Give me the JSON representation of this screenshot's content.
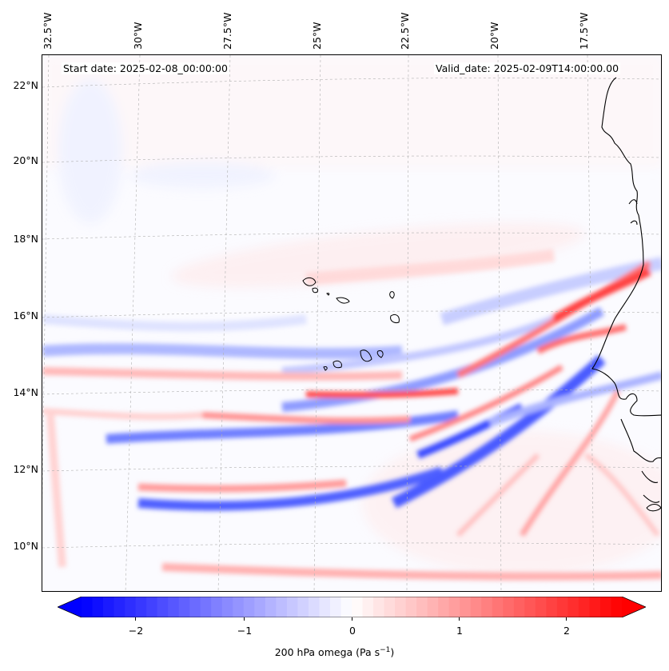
{
  "header": {
    "start_date": "Start date: 2025-02-08_00:00:00",
    "valid_date": "Valid_date: 2025-02-09T14:00:00.00"
  },
  "axes": {
    "longitude_labels": [
      "32.5°W",
      "30°W",
      "27.5°W",
      "25°W",
      "22.5°W",
      "20°W",
      "17.5°W"
    ],
    "latitude_labels": [
      "22°N",
      "20°N",
      "18°N",
      "16°N",
      "14°N",
      "12°N",
      "10°N"
    ]
  },
  "colorbar": {
    "title": "200 hPa omega (Pa s",
    "title_sup": "−1",
    "title_end": ")",
    "tick_labels": [
      "−2",
      "−1",
      "0",
      "1",
      "2"
    ],
    "tick_values": [
      -2,
      -1,
      0,
      1,
      2
    ],
    "range": [
      -2.75,
      2.75
    ],
    "negative_color": "#0000ff",
    "neutral_color": "#ffffff",
    "positive_color": "#ff0000"
  },
  "colors": {
    "coastline": "#000000",
    "gridline": "#b0b0b0",
    "ascent_blue": "#3a4bff",
    "descent_red": "#ff4040"
  }
}
